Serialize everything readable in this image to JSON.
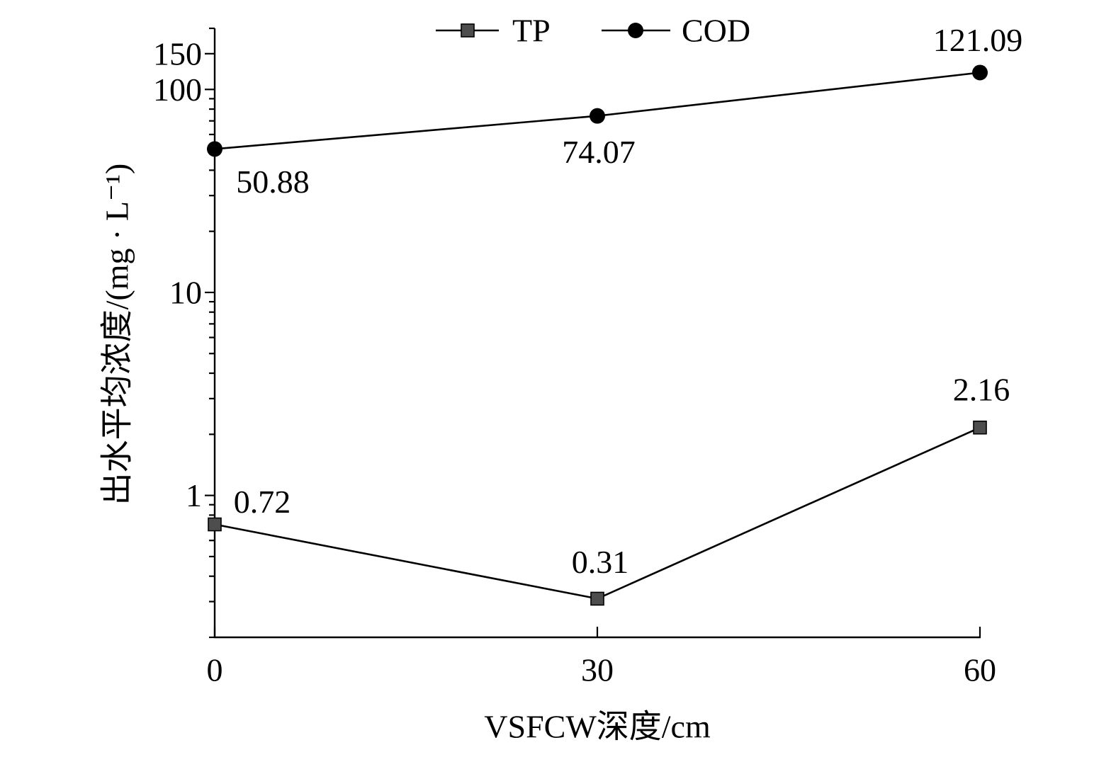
{
  "chart_data": {
    "type": "line",
    "x": [
      0,
      30,
      60
    ],
    "xticks": [
      0,
      30,
      60
    ],
    "xlim": [
      0,
      60
    ],
    "xlabel": "VSFCW深度/cm",
    "ylabel": "出水平均浓度/(mg · L⁻¹)",
    "yscale": "log",
    "ylim": [
      0.2,
      200
    ],
    "yticks": [
      1,
      10,
      100,
      150
    ],
    "grid": false,
    "legend": "top",
    "series": [
      {
        "name": "TP",
        "marker": "square",
        "marker_color": "#4d4d4d",
        "line_color": "#000000",
        "values": [
          0.72,
          0.31,
          2.16
        ]
      },
      {
        "name": "COD",
        "marker": "circle",
        "marker_color": "#000000",
        "line_color": "#000000",
        "values": [
          50.88,
          74.07,
          121.09
        ]
      }
    ]
  }
}
